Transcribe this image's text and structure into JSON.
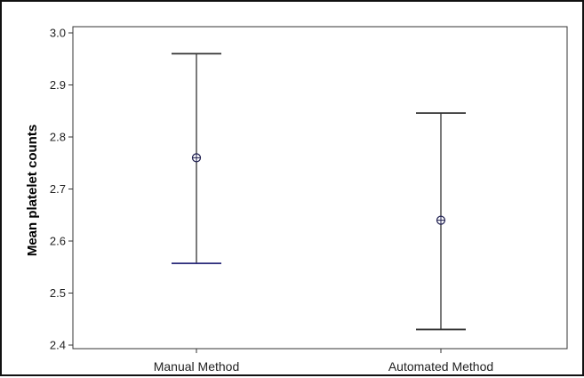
{
  "chart_data": {
    "type": "errorbar",
    "title": "",
    "xlabel": "",
    "ylabel": "Mean platelet counts",
    "ylim": [
      2.4,
      3.0
    ],
    "yticks": [
      "2.4",
      "2.5",
      "2.6",
      "2.7",
      "2.8",
      "2.9",
      "3.0"
    ],
    "grid": false,
    "categories": [
      "Manual Method",
      "Automated Method"
    ],
    "means": [
      2.76,
      2.64
    ],
    "lower": [
      2.557,
      2.43
    ],
    "upper": [
      2.96,
      2.846
    ],
    "colors": {
      "axis": "#333333",
      "bar": "#333333",
      "manual_lower_cap": "#2a2a7a",
      "plot_background": "#ffffff"
    }
  }
}
